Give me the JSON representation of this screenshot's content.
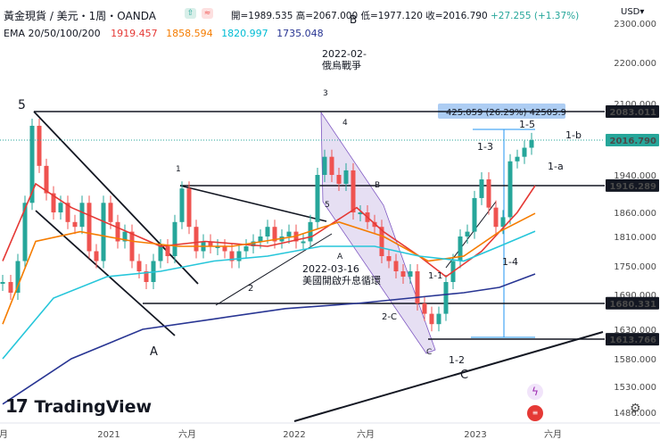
{
  "header": {
    "symbol_title": "黃金現貨 / 美元・1周・OANDA",
    "ohlc": {
      "open_label": "開",
      "open": "=1989.535",
      "high_label": "高",
      "high": "=2067.000",
      "low_label": "低",
      "low": "=1977.120",
      "close_label": "收",
      "close": "=2016.790",
      "change": "+27.255 (+1.37%)"
    },
    "ema_label": "EMA 20/50/100/200",
    "ema_values": [
      {
        "value": "1919.457",
        "color": "#e53935"
      },
      {
        "value": "1858.594",
        "color": "#f57c00"
      },
      {
        "value": "1820.997",
        "color": "#00bcd4"
      },
      {
        "value": "1735.048",
        "color": "#283593"
      }
    ],
    "currency": "USD",
    "currency_dropdown": "▾"
  },
  "logo": "TradingView",
  "chart_data": {
    "type": "candlestick",
    "price_axis_ticks": [
      "2300.000",
      "2200.000",
      "2100.000",
      "1940.000",
      "1860.000",
      "1810.000",
      "1750.000",
      "1630.000",
      "1580.000",
      "1530.000",
      "1486.000"
    ],
    "price_axis_ticks_partial": [
      "1690.000"
    ],
    "price_labels": [
      {
        "text": "2083.011",
        "price": 2083.011,
        "style": "dark"
      },
      {
        "text": "2016.790",
        "price": 2016.79,
        "style": "teal"
      },
      {
        "text": "1916.289",
        "price": 1916.289,
        "style": "dark"
      },
      {
        "text": "1680.331",
        "price": 1680.331,
        "style": "dark"
      },
      {
        "text": "1613.766",
        "price": 1613.766,
        "style": "dark"
      }
    ],
    "time_axis_ticks": [
      "月",
      "2021",
      "六月",
      "2022",
      "六月",
      "2023",
      "六月"
    ],
    "measure_label": "425.059 (26.29%) 42505.9",
    "annotations": [
      {
        "text": "5"
      },
      {
        "text": "A"
      },
      {
        "text": "1"
      },
      {
        "text": "2"
      },
      {
        "text": "3"
      },
      {
        "text": "4"
      },
      {
        "text": "5"
      },
      {
        "text": "B"
      },
      {
        "text": "B"
      },
      {
        "text": "A"
      },
      {
        "text": "2-C"
      },
      {
        "text": "C"
      },
      {
        "text": "1-1"
      },
      {
        "text": "1-2"
      },
      {
        "text": "C"
      },
      {
        "text": "1-3"
      },
      {
        "text": "1-4"
      },
      {
        "text": "1-5"
      },
      {
        "text": "1-a"
      },
      {
        "text": "1-b"
      },
      {
        "text": "1"
      },
      {
        "text": "2022-02-"
      },
      {
        "text": "俄烏戰爭"
      },
      {
        "text": "2022-03-16"
      },
      {
        "text": "美國開啟升息循環"
      }
    ],
    "series": [
      {
        "name": "EMA 20",
        "color": "#e53935"
      },
      {
        "name": "EMA 50",
        "color": "#f57c00"
      },
      {
        "name": "EMA 100",
        "color": "#00bcd4"
      },
      {
        "name": "EMA 200",
        "color": "#283593"
      }
    ],
    "colors": {
      "up": "#26a69a",
      "down": "#ef5350"
    }
  }
}
